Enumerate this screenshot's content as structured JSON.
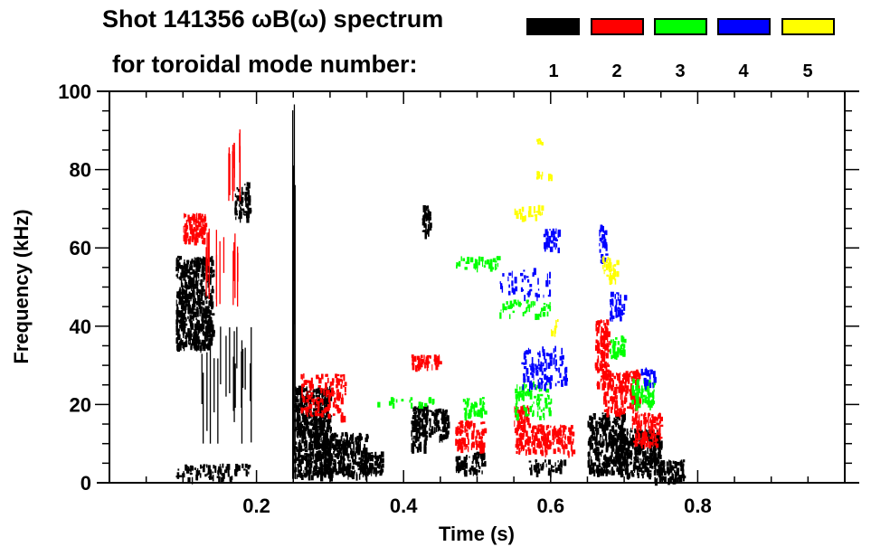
{
  "header": {
    "title_line1": "Shot 141356 ωB(ω) spectrum",
    "title_line2": "for toroidal mode number:"
  },
  "legend": [
    {
      "label": "1",
      "color": "#000000"
    },
    {
      "label": "2",
      "color": "#ff0000"
    },
    {
      "label": "3",
      "color": "#00ff00"
    },
    {
      "label": "4",
      "color": "#0000ff"
    },
    {
      "label": "5",
      "color": "#ffff00"
    }
  ],
  "chart_data": {
    "type": "heatmap",
    "title": "Shot 141356 ωB(ω) spectrum for toroidal mode number:",
    "xlabel": "Time (s)",
    "ylabel": "Frequency (kHz)",
    "xlim": [
      0.0,
      1.0
    ],
    "ylim": [
      0,
      100
    ],
    "xticks": [
      0.2,
      0.4,
      0.6,
      0.8
    ],
    "xtick_labels": [
      "0.2",
      "0.4",
      "0.6",
      "0.8"
    ],
    "xminor_step": 0.05,
    "yticks": [
      0,
      20,
      40,
      60,
      80,
      100
    ],
    "ytick_labels": [
      "0",
      "20",
      "40",
      "60",
      "80",
      "100"
    ],
    "yminor_step": 5,
    "grid": false,
    "legend_position": "top-right",
    "series": [
      {
        "name": "1",
        "color": "#000000",
        "regions": [
          {
            "t": [
              0.09,
              0.14
            ],
            "f": [
              35,
              58
            ],
            "density": 0.85
          },
          {
            "t": [
              0.12,
              0.2
            ],
            "f": [
              10,
              40
            ],
            "density": 0.18,
            "streaks": true
          },
          {
            "t": [
              0.17,
              0.19
            ],
            "f": [
              68,
              77
            ],
            "density": 0.7
          },
          {
            "t": [
              0.09,
              0.19
            ],
            "f": [
              1,
              5
            ],
            "density": 0.35
          },
          {
            "t": [
              0.248,
              0.252
            ],
            "f": [
              1,
              98
            ],
            "density": 0.9,
            "streaks": true
          },
          {
            "t": [
              0.25,
              0.3
            ],
            "f": [
              2,
              25
            ],
            "density": 0.85
          },
          {
            "t": [
              0.29,
              0.35
            ],
            "f": [
              2,
              13
            ],
            "density": 0.8
          },
          {
            "t": [
              0.34,
              0.37
            ],
            "f": [
              3,
              8
            ],
            "density": 0.8
          },
          {
            "t": [
              0.41,
              0.43
            ],
            "f": [
              9,
              20
            ],
            "density": 0.8
          },
          {
            "t": [
              0.43,
              0.46
            ],
            "f": [
              12,
              19
            ],
            "density": 0.75
          },
          {
            "t": [
              0.425,
              0.435
            ],
            "f": [
              64,
              72
            ],
            "density": 0.85
          },
          {
            "t": [
              0.47,
              0.51
            ],
            "f": [
              3,
              8
            ],
            "density": 0.55
          },
          {
            "t": [
              0.57,
              0.62
            ],
            "f": [
              3,
              6
            ],
            "density": 0.5
          },
          {
            "t": [
              0.65,
              0.7
            ],
            "f": [
              3,
              18
            ],
            "density": 0.8
          },
          {
            "t": [
              0.69,
              0.75
            ],
            "f": [
              2,
              14
            ],
            "density": 0.8
          },
          {
            "t": [
              0.74,
              0.78
            ],
            "f": [
              1,
              6
            ],
            "density": 0.8
          },
          {
            "t": [
              0.28,
              0.29
            ],
            "f": [
              8,
              17
            ],
            "density": 0.4
          }
        ]
      },
      {
        "name": "2",
        "color": "#ff0000",
        "regions": [
          {
            "t": [
              0.1,
              0.13
            ],
            "f": [
              62,
              69
            ],
            "density": 0.75
          },
          {
            "t": [
              0.13,
              0.18
            ],
            "f": [
              45,
              65
            ],
            "density": 0.2,
            "streaks": true
          },
          {
            "t": [
              0.16,
              0.18
            ],
            "f": [
              72,
              92
            ],
            "density": 0.35,
            "streaks": true
          },
          {
            "t": [
              0.26,
              0.32
            ],
            "f": [
              17,
              28
            ],
            "density": 0.35
          },
          {
            "t": [
              0.41,
              0.45
            ],
            "f": [
              30,
              33
            ],
            "density": 0.65
          },
          {
            "t": [
              0.47,
              0.51
            ],
            "f": [
              9,
              16
            ],
            "density": 0.6
          },
          {
            "t": [
              0.55,
              0.63
            ],
            "f": [
              8,
              15
            ],
            "density": 0.65
          },
          {
            "t": [
              0.55,
              0.57
            ],
            "f": [
              14,
              20
            ],
            "density": 0.6
          },
          {
            "t": [
              0.66,
              0.68
            ],
            "f": [
              25,
              42
            ],
            "density": 0.6
          },
          {
            "t": [
              0.67,
              0.72
            ],
            "f": [
              18,
              29
            ],
            "density": 0.6
          },
          {
            "t": [
              0.71,
              0.75
            ],
            "f": [
              10,
              18
            ],
            "density": 0.55
          }
        ]
      },
      {
        "name": "3",
        "color": "#00ff00",
        "regions": [
          {
            "t": [
              0.48,
              0.51
            ],
            "f": [
              17,
              22
            ],
            "density": 0.5
          },
          {
            "t": [
              0.55,
              0.6
            ],
            "f": [
              17,
              26
            ],
            "density": 0.35
          },
          {
            "t": [
              0.47,
              0.53
            ],
            "f": [
              55,
              58
            ],
            "density": 0.35
          },
          {
            "t": [
              0.53,
              0.6
            ],
            "f": [
              43,
              47
            ],
            "density": 0.25
          },
          {
            "t": [
              0.68,
              0.7
            ],
            "f": [
              32,
              38
            ],
            "density": 0.55
          },
          {
            "t": [
              0.71,
              0.74
            ],
            "f": [
              20,
              27
            ],
            "density": 0.5
          },
          {
            "t": [
              0.36,
              0.44
            ],
            "f": [
              20,
              22
            ],
            "density": 0.15
          }
        ]
      },
      {
        "name": "4",
        "color": "#0000ff",
        "regions": [
          {
            "t": [
              0.56,
              0.62
            ],
            "f": [
              25,
              35
            ],
            "density": 0.3
          },
          {
            "t": [
              0.59,
              0.61
            ],
            "f": [
              60,
              65
            ],
            "density": 0.5
          },
          {
            "t": [
              0.665,
              0.675
            ],
            "f": [
              57,
              66
            ],
            "density": 0.55
          },
          {
            "t": [
              0.68,
              0.7
            ],
            "f": [
              42,
              49
            ],
            "density": 0.45
          },
          {
            "t": [
              0.72,
              0.74
            ],
            "f": [
              25,
              30
            ],
            "density": 0.35
          },
          {
            "t": [
              0.53,
              0.6
            ],
            "f": [
              48,
              55
            ],
            "density": 0.15
          }
        ]
      },
      {
        "name": "5",
        "color": "#ffff00",
        "regions": [
          {
            "t": [
              0.55,
              0.59
            ],
            "f": [
              68,
              71
            ],
            "density": 0.3
          },
          {
            "t": [
              0.58,
              0.6
            ],
            "f": [
              78,
              80
            ],
            "density": 0.3
          },
          {
            "t": [
              0.67,
              0.69
            ],
            "f": [
              52,
              58
            ],
            "density": 0.45
          },
          {
            "t": [
              0.6,
              0.61
            ],
            "f": [
              38,
              42
            ],
            "density": 0.3
          },
          {
            "t": [
              0.58,
              0.59
            ],
            "f": [
              87,
              88
            ],
            "density": 0.5
          }
        ]
      }
    ]
  }
}
